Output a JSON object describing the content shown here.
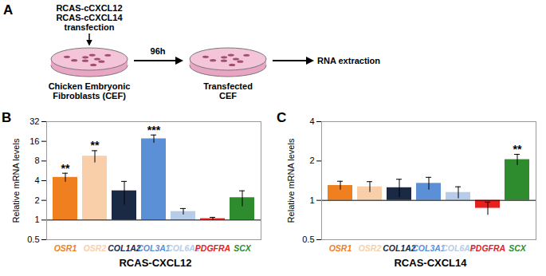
{
  "diagram": {
    "panel_label": "A",
    "vectors": [
      "RCAS-cCXCL12",
      "RCAS-cCXCL14"
    ],
    "action": "transfection",
    "time": "96h",
    "start_dish": [
      "Chicken Embryonic",
      "Fibroblasts (CEF)"
    ],
    "end_dish": [
      "Transfected",
      "CEF"
    ],
    "result": "RNA extraction"
  },
  "chart_data": [
    {
      "type": "bar",
      "panel_label": "B",
      "log": "y",
      "xlabel": "RCAS-CXCL12",
      "ylabel": "Relative mRNA levels",
      "categories": [
        "OSR1",
        "OSR2",
        "COL1A2",
        "COL3A1",
        "COL6A1",
        "PDGFRA",
        "SCX"
      ],
      "values": [
        4.5,
        9.5,
        2.8,
        17.5,
        1.35,
        1.05,
        2.2
      ],
      "error": [
        0.7,
        2.0,
        1.1,
        2.5,
        0.15,
        0.05,
        0.6
      ],
      "annotations": [
        "**",
        "**",
        null,
        "***",
        null,
        null,
        null
      ],
      "baseline": 1,
      "colors": [
        "#f07f1f",
        "#f8cfa8",
        "#1b2a44",
        "#5b8fd6",
        "#b6cce8",
        "#e5201f",
        "#2e8b2e"
      ],
      "ylim": [
        0.5,
        32
      ],
      "yticks": [
        0.5,
        1,
        2,
        4,
        8,
        16,
        32
      ],
      "grid": false
    },
    {
      "type": "bar",
      "panel_label": "C",
      "log": "y",
      "xlabel": "RCAS-CXCL14",
      "ylabel": "Relative mRNA levels",
      "categories": [
        "OSR1",
        "OSR2",
        "COL1A2",
        "COL3A1",
        "COL6A1",
        "PDGFRA",
        "SCX"
      ],
      "values": [
        1.3,
        1.27,
        1.25,
        1.35,
        1.15,
        0.87,
        2.05
      ],
      "error": [
        0.1,
        0.12,
        0.2,
        0.15,
        0.12,
        0.1,
        0.2
      ],
      "annotations": [
        null,
        null,
        null,
        null,
        null,
        null,
        "**"
      ],
      "baseline": 1,
      "colors": [
        "#f07f1f",
        "#f8cfa8",
        "#1b2a44",
        "#5b8fd6",
        "#b6cce8",
        "#e5201f",
        "#2e8b2e"
      ],
      "ylim": [
        0.5,
        4
      ],
      "yticks": [
        0.5,
        1,
        2,
        4
      ],
      "grid": false
    }
  ]
}
